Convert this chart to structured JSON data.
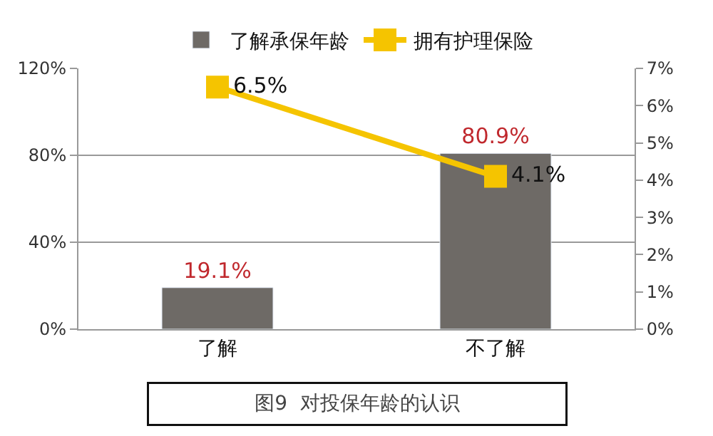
{
  "chart_data": {
    "type": "bar",
    "categories": [
      "了解",
      "不了解"
    ],
    "series": [
      {
        "name": "了解承保年龄",
        "color": "#6e6a66",
        "values": [
          19.1,
          80.9
        ],
        "value_labels": [
          "19.1%",
          "80.9%"
        ]
      },
      {
        "name": "拥有护理保险",
        "type": "line",
        "axis": "y2",
        "color": "#f5c400",
        "marker": "square",
        "values": [
          6.5,
          4.1
        ],
        "value_labels": [
          "6.5%",
          "4.1%"
        ]
      }
    ],
    "ylim": [
      0,
      120
    ],
    "yticks": [
      {
        "value": 0,
        "label": "0%"
      },
      {
        "value": 40,
        "label": "40%"
      },
      {
        "value": 80,
        "label": "80%"
      },
      {
        "value": 120,
        "label": "120%"
      }
    ],
    "y2lim": [
      0,
      7
    ],
    "y2ticks": [
      {
        "value": 0,
        "label": "0%"
      },
      {
        "value": 1,
        "label": "1%"
      },
      {
        "value": 2,
        "label": "2%"
      },
      {
        "value": 3,
        "label": "3%"
      },
      {
        "value": 4,
        "label": "4%"
      },
      {
        "value": 5,
        "label": "5%"
      },
      {
        "value": 6,
        "label": "6%"
      },
      {
        "value": 7,
        "label": "7%"
      }
    ],
    "grid": "y",
    "legend": "top",
    "annotations": [
      "图9  对投保年龄的认识"
    ]
  }
}
